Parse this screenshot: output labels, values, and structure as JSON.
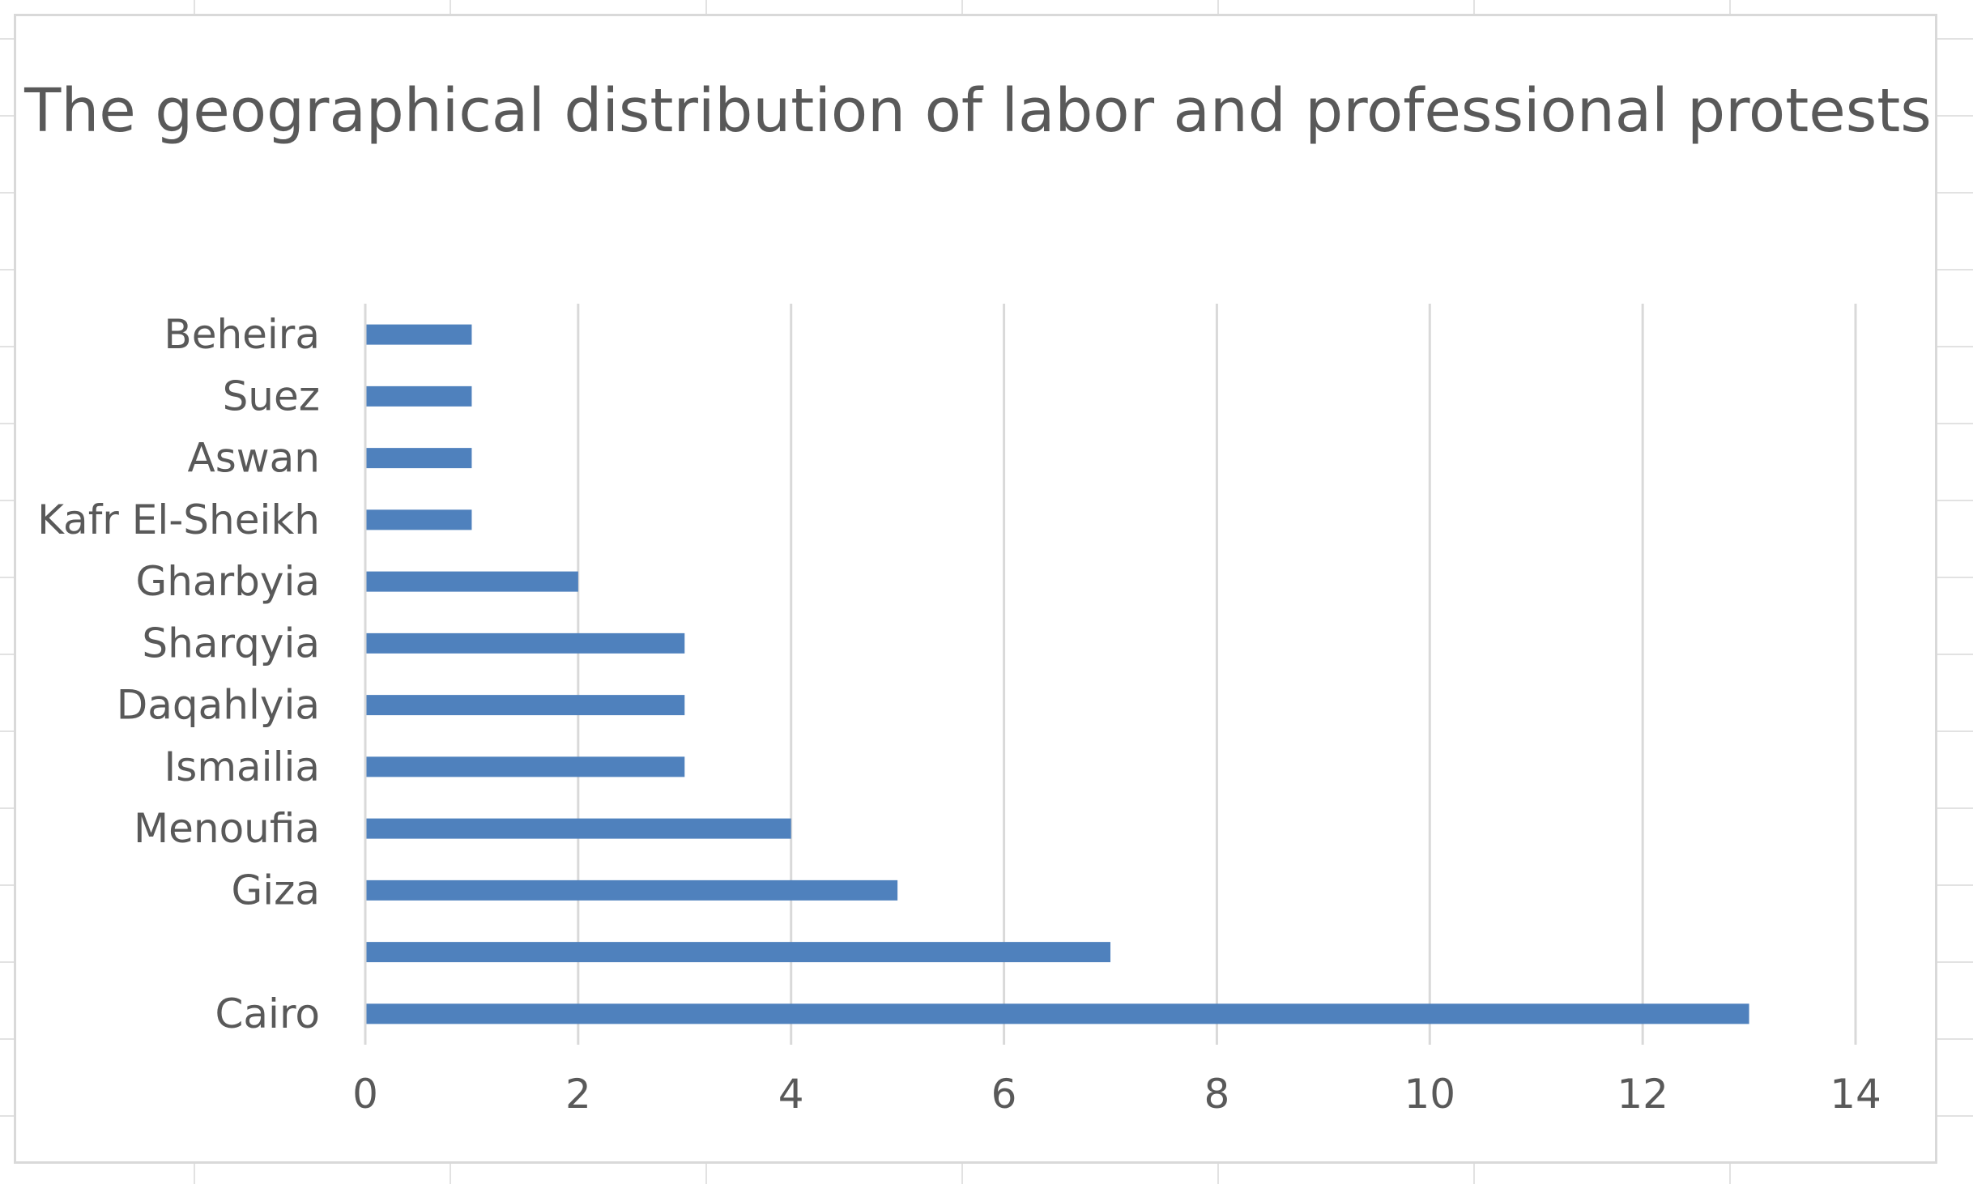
{
  "chart_data": {
    "type": "bar",
    "orientation": "horizontal",
    "title": "The  geographical distribution of labor and professional protests",
    "xlabel": "",
    "ylabel": "",
    "categories": [
      "Cairo",
      "",
      "Giza",
      "Menoufia",
      "Ismailia",
      "Daqahlyia",
      "Sharqyia",
      "Gharbyia",
      "Kafr El-Sheikh",
      "Aswan",
      "Suez",
      "Beheira"
    ],
    "values": [
      13,
      7,
      5,
      4,
      3,
      3,
      3,
      2,
      1,
      1,
      1,
      1
    ],
    "xlim": [
      0,
      14
    ],
    "x_ticks": [
      "0",
      "2",
      "4",
      "6",
      "8",
      "10",
      "12",
      "14"
    ],
    "grid": "vertical",
    "legend": "none",
    "colors": {
      "bar": "#4F81BD",
      "grid": "#d9d9d9",
      "text": "#595959",
      "border": "#d9d9d9",
      "sheet_grid": "#e2e2e2"
    }
  }
}
